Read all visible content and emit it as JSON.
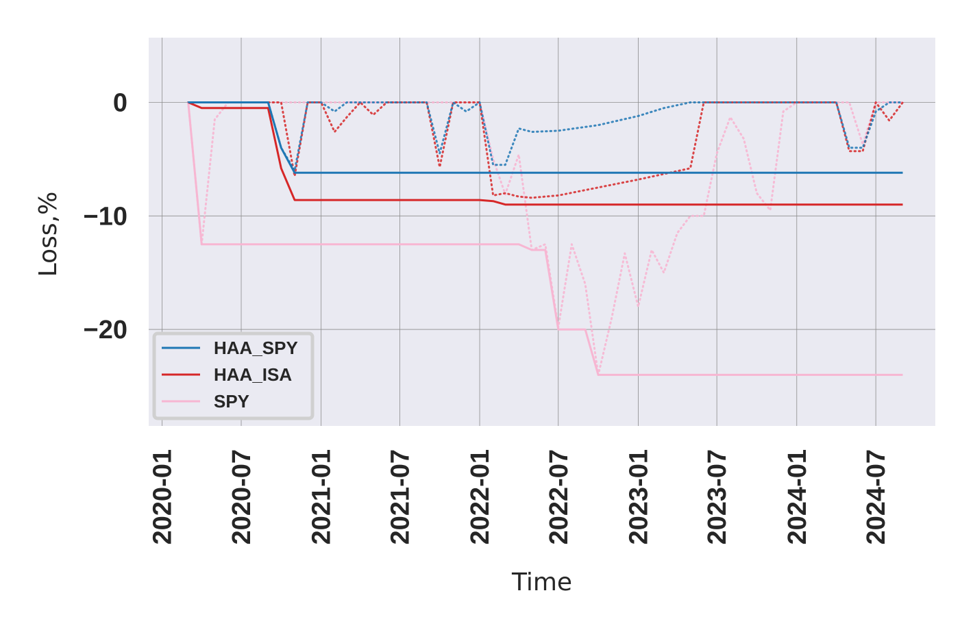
{
  "chart_data": {
    "type": "line",
    "title": "",
    "xlabel": "Time",
    "ylabel": "Loss,%",
    "xlim": [
      "2019-12-01",
      "2024-11-15"
    ],
    "ylim": [
      -28.5,
      5.7
    ],
    "x_ticks": [
      "2020-01",
      "2020-07",
      "2021-01",
      "2021-07",
      "2022-01",
      "2022-07",
      "2023-01",
      "2023-07",
      "2024-01",
      "2024-07"
    ],
    "y_ticks": [
      0,
      -10,
      -20
    ],
    "y_tick_labels": [
      "0",
      "−10",
      "−20"
    ],
    "grid": true,
    "legend_position": "lower-left",
    "colors": {
      "background": "#eaeaf2",
      "grid": "#8c8c8c",
      "HAA_SPY": "#1f77b4",
      "HAA_ISA": "#d62728",
      "SPY": "#f7b6d2"
    },
    "series": [
      {
        "name": "HAA_SPY",
        "style": "solid",
        "color": "#1f77b4",
        "x": [
          "2020-03-01",
          "2020-04-01",
          "2020-08-01",
          "2020-09-01",
          "2020-10-01",
          "2020-11-01",
          "2021-01-01",
          "2022-01-01",
          "2022-03-01",
          "2022-06-01",
          "2022-07-01",
          "2023-01-01",
          "2023-07-01",
          "2024-01-01",
          "2024-07-01",
          "2024-09-01"
        ],
        "y": [
          0,
          0,
          0,
          0,
          -4,
          -6.2,
          -6.2,
          -6.2,
          -6.2,
          -6.2,
          -6.2,
          -6.2,
          -6.2,
          -6.2,
          -6.2,
          -6.2
        ]
      },
      {
        "name": "HAA_ISA",
        "style": "solid",
        "color": "#d62728",
        "x": [
          "2020-03-01",
          "2020-04-01",
          "2020-09-01",
          "2020-10-01",
          "2020-11-01",
          "2021-01-01",
          "2022-01-01",
          "2022-02-01",
          "2022-03-01",
          "2022-07-01",
          "2023-01-01",
          "2023-07-01",
          "2024-01-01",
          "2024-07-01",
          "2024-09-01"
        ],
        "y": [
          0,
          -0.5,
          -0.5,
          -5.8,
          -8.6,
          -8.6,
          -8.6,
          -8.7,
          -9,
          -9,
          -9,
          -9,
          -9,
          -9,
          -9
        ]
      },
      {
        "name": "SPY",
        "style": "solid",
        "color": "#f7b6d2",
        "x": [
          "2020-03-01",
          "2020-04-01",
          "2021-01-01",
          "2022-01-01",
          "2022-04-01",
          "2022-05-01",
          "2022-06-01",
          "2022-07-01",
          "2022-09-01",
          "2022-10-01",
          "2023-01-01",
          "2023-07-01",
          "2024-01-01",
          "2024-07-01",
          "2024-09-01"
        ],
        "y": [
          0,
          -12.5,
          -12.5,
          -12.5,
          -12.5,
          -13,
          -13,
          -20,
          -20,
          -24,
          -24,
          -24,
          -24,
          -24,
          -24
        ]
      },
      {
        "name": "",
        "style": "dotted",
        "color": "#1f77b4",
        "x": [
          "2020-03-01",
          "2020-04-01",
          "2020-08-01",
          "2020-09-01",
          "2020-10-01",
          "2020-11-01",
          "2020-12-01",
          "2021-01-01",
          "2021-02-01",
          "2021-03-01",
          "2021-06-01",
          "2021-07-01",
          "2021-09-01",
          "2021-10-01",
          "2021-11-01",
          "2021-12-01",
          "2022-01-01",
          "2022-02-01",
          "2022-03-01",
          "2022-04-01",
          "2022-05-01",
          "2022-07-01",
          "2022-10-01",
          "2023-01-01",
          "2023-03-01",
          "2023-05-01",
          "2023-07-01",
          "2024-01-01",
          "2024-04-01",
          "2024-05-01",
          "2024-06-01",
          "2024-07-01",
          "2024-08-01",
          "2024-09-01"
        ],
        "y": [
          0,
          0,
          0,
          0,
          -4,
          -6,
          0,
          0,
          -0.8,
          0,
          0,
          0,
          0,
          -4.5,
          0,
          -0.8,
          0,
          -5.5,
          -5.5,
          -2.3,
          -2.6,
          -2.5,
          -2,
          -1.2,
          -0.5,
          0,
          0,
          0,
          0,
          -4,
          -4,
          -0.8,
          0,
          0
        ]
      },
      {
        "name": "",
        "style": "dotted",
        "color": "#d62728",
        "x": [
          "2020-03-01",
          "2020-04-01",
          "2020-09-01",
          "2020-10-01",
          "2020-11-01",
          "2020-12-01",
          "2021-01-01",
          "2021-02-01",
          "2021-03-01",
          "2021-04-01",
          "2021-05-01",
          "2021-06-01",
          "2021-07-01",
          "2021-09-01",
          "2021-10-01",
          "2021-11-01",
          "2022-01-01",
          "2022-02-01",
          "2022-03-01",
          "2022-04-01",
          "2022-05-01",
          "2022-07-01",
          "2022-10-01",
          "2023-01-01",
          "2023-05-01",
          "2023-06-01",
          "2023-07-01",
          "2024-01-01",
          "2024-04-01",
          "2024-05-01",
          "2024-06-01",
          "2024-07-01",
          "2024-08-01",
          "2024-09-01"
        ],
        "y": [
          0,
          0,
          0,
          0,
          -6.5,
          0,
          0,
          -2.6,
          -1.3,
          0,
          -1.1,
          0,
          0,
          0,
          -5.7,
          0,
          0,
          -8.2,
          -8,
          -8.3,
          -8.4,
          -8.2,
          -7.5,
          -6.8,
          -5.8,
          0,
          0,
          0,
          0,
          -4.3,
          -4.3,
          0,
          -1.6,
          0
        ]
      },
      {
        "name": "",
        "style": "dotted",
        "color": "#f7b6d2",
        "x": [
          "2020-03-01",
          "2020-04-01",
          "2020-05-01",
          "2020-06-01",
          "2020-08-01",
          "2021-01-01",
          "2021-12-01",
          "2022-01-01",
          "2022-02-01",
          "2022-03-01",
          "2022-04-01",
          "2022-05-01",
          "2022-06-01",
          "2022-07-01",
          "2022-08-01",
          "2022-09-01",
          "2022-10-01",
          "2022-11-01",
          "2022-12-01",
          "2023-01-01",
          "2023-02-01",
          "2023-03-01",
          "2023-04-01",
          "2023-05-01",
          "2023-06-01",
          "2023-07-01",
          "2023-08-01",
          "2023-09-01",
          "2023-10-01",
          "2023-11-01",
          "2023-12-01",
          "2024-01-01",
          "2024-03-01",
          "2024-04-01",
          "2024-05-01",
          "2024-06-01",
          "2024-07-01",
          "2024-08-01",
          "2024-09-01"
        ],
        "y": [
          0,
          -12.5,
          -1.5,
          0,
          0,
          0,
          0,
          0,
          -5,
          -8.1,
          -4.6,
          -13,
          -12.5,
          -19.8,
          -12.5,
          -16,
          -24,
          -19,
          -13.3,
          -18,
          -13,
          -15,
          -11.5,
          -10,
          -10,
          -4.5,
          -1.3,
          -3.2,
          -8,
          -9.5,
          -0.8,
          0,
          0,
          0,
          0,
          -3.7,
          0,
          0,
          0
        ]
      }
    ]
  }
}
